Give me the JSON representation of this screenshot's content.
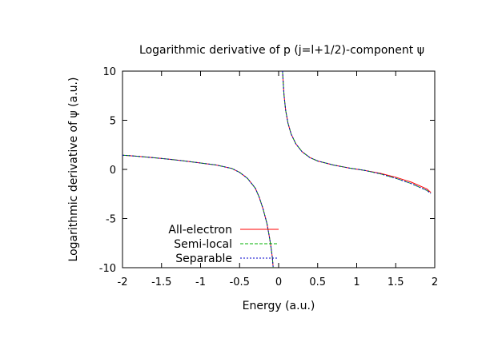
{
  "chart_data": {
    "type": "line",
    "title": "Logarithmic derivative of p (j=l+1/2)-component ψ",
    "xlabel": "Energy (a.u.)",
    "ylabel": "Logarithmic derivative of ψ (a.u.)",
    "xlim": [
      -2,
      2
    ],
    "ylim": [
      -10,
      10
    ],
    "xticks": [
      -2,
      -1.5,
      -1,
      -0.5,
      0,
      0.5,
      1,
      1.5,
      2
    ],
    "xtick_labels": [
      "-2",
      "-1.5",
      "-1",
      "-0.5",
      "0",
      "0.5",
      "1",
      "1.5",
      "2"
    ],
    "yticks": [
      -10,
      -5,
      0,
      5,
      10
    ],
    "ytick_labels": [
      "-10",
      "-5",
      "0",
      "5",
      "10"
    ],
    "grid": false,
    "legend": "bottom-left",
    "series": [
      {
        "name": "All-electron",
        "color": "#ff0000",
        "dash": "solid",
        "segments": [
          {
            "x": [
              -2.0,
              -1.8,
              -1.6,
              -1.4,
              -1.2,
              -1.0,
              -0.8,
              -0.6,
              -0.5,
              -0.4,
              -0.3,
              -0.25,
              -0.2,
              -0.15,
              -0.12,
              -0.1,
              -0.08,
              -0.07
            ],
            "y": [
              1.45,
              1.33,
              1.19,
              1.03,
              0.85,
              0.65,
              0.45,
              0.1,
              -0.3,
              -0.9,
              -1.9,
              -2.8,
              -4.0,
              -5.5,
              -6.8,
              -7.8,
              -9.0,
              -10.0
            ]
          },
          {
            "x": [
              0.05,
              0.06,
              0.07,
              0.09,
              0.12,
              0.16,
              0.22,
              0.3,
              0.4,
              0.5,
              0.7,
              0.9,
              1.1,
              1.3,
              1.5,
              1.7,
              1.9,
              1.95
            ],
            "y": [
              10.0,
              8.6,
              7.5,
              6.0,
              4.7,
              3.6,
              2.6,
              1.8,
              1.2,
              0.85,
              0.45,
              0.15,
              -0.1,
              -0.4,
              -0.8,
              -1.3,
              -2.0,
              -2.35
            ]
          }
        ]
      },
      {
        "name": "Semi-local",
        "color": "#00b000",
        "dash": "dashed",
        "segments": [
          {
            "x": [
              -2.0,
              -1.8,
              -1.6,
              -1.4,
              -1.2,
              -1.0,
              -0.8,
              -0.6,
              -0.5,
              -0.4,
              -0.3,
              -0.25,
              -0.2,
              -0.15,
              -0.12,
              -0.1,
              -0.08,
              -0.07
            ],
            "y": [
              1.45,
              1.33,
              1.19,
              1.03,
              0.85,
              0.65,
              0.45,
              0.1,
              -0.3,
              -0.9,
              -1.9,
              -2.8,
              -4.0,
              -5.5,
              -6.8,
              -7.8,
              -9.0,
              -10.0
            ]
          },
          {
            "x": [
              0.05,
              0.06,
              0.07,
              0.09,
              0.12,
              0.16,
              0.22,
              0.3,
              0.4,
              0.5,
              0.7,
              0.9,
              1.1,
              1.3,
              1.5,
              1.7,
              1.9,
              1.95
            ],
            "y": [
              10.0,
              8.6,
              7.5,
              6.0,
              4.7,
              3.6,
              2.6,
              1.8,
              1.2,
              0.85,
              0.45,
              0.15,
              -0.1,
              -0.45,
              -0.9,
              -1.45,
              -2.15,
              -2.45
            ]
          }
        ]
      },
      {
        "name": "Separable",
        "color": "#0000cc",
        "dash": "dotted",
        "segments": [
          {
            "x": [
              -2.0,
              -1.8,
              -1.6,
              -1.4,
              -1.2,
              -1.0,
              -0.8,
              -0.6,
              -0.5,
              -0.4,
              -0.3,
              -0.25,
              -0.2,
              -0.15,
              -0.12,
              -0.1,
              -0.08,
              -0.07
            ],
            "y": [
              1.45,
              1.33,
              1.19,
              1.03,
              0.85,
              0.65,
              0.45,
              0.1,
              -0.3,
              -0.9,
              -1.9,
              -2.8,
              -4.0,
              -5.5,
              -6.8,
              -7.8,
              -9.0,
              -10.0
            ]
          },
          {
            "x": [
              0.05,
              0.06,
              0.07,
              0.09,
              0.12,
              0.16,
              0.22,
              0.3,
              0.4,
              0.5,
              0.7,
              0.9,
              1.1,
              1.3,
              1.5,
              1.7,
              1.9,
              1.95
            ],
            "y": [
              10.0,
              8.6,
              7.5,
              6.0,
              4.7,
              3.6,
              2.6,
              1.8,
              1.2,
              0.85,
              0.45,
              0.15,
              -0.1,
              -0.45,
              -0.9,
              -1.45,
              -2.15,
              -2.45
            ]
          }
        ]
      }
    ]
  }
}
